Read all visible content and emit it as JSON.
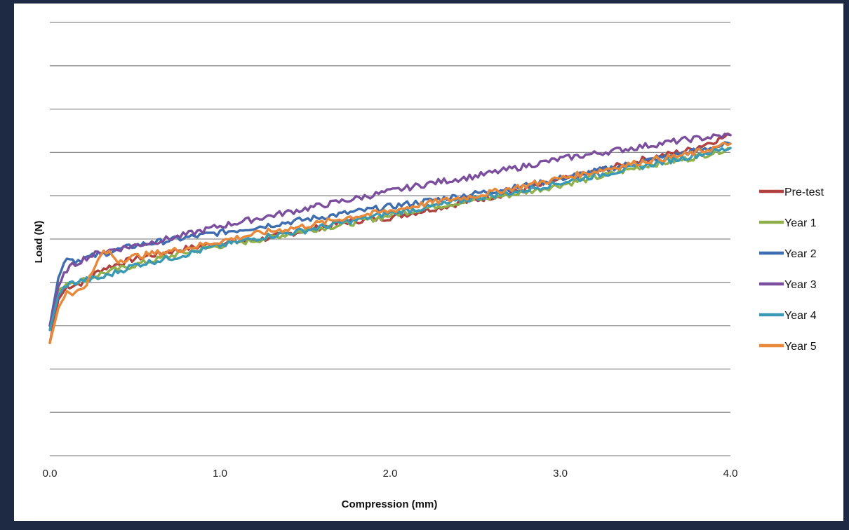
{
  "chart_data": {
    "type": "line",
    "title": "",
    "xlabel": "Compression (mm)",
    "ylabel": "Load (N)",
    "xlim": [
      0,
      4
    ],
    "ylim": [
      0,
      10
    ],
    "x_ticks": [
      "0.0",
      "1.0",
      "2.0",
      "3.0",
      "4.0"
    ],
    "y_tick_labels_shown": false,
    "grid": true,
    "legend_position": "right",
    "series": [
      {
        "name": "Pre-test",
        "color": "#b0413e",
        "x": [
          0,
          0.05,
          0.1,
          0.2,
          0.3,
          0.5,
          0.75,
          1,
          1.25,
          1.5,
          1.75,
          2,
          2.25,
          2.5,
          2.75,
          3,
          3.25,
          3.5,
          3.75,
          4
        ],
        "y": [
          2.6,
          3.6,
          3.9,
          4.0,
          4.3,
          4.55,
          4.75,
          4.9,
          5.0,
          5.2,
          5.4,
          5.5,
          5.7,
          5.9,
          6.1,
          6.35,
          6.6,
          6.85,
          7.05,
          7.4
        ]
      },
      {
        "name": "Year 1",
        "color": "#8fb04a",
        "x": [
          0,
          0.05,
          0.1,
          0.2,
          0.3,
          0.5,
          0.75,
          1,
          1.25,
          1.5,
          1.75,
          2,
          2.25,
          2.5,
          2.75,
          3,
          3.25,
          3.5,
          3.75,
          4
        ],
        "y": [
          3.0,
          3.8,
          4.0,
          4.05,
          4.2,
          4.4,
          4.65,
          4.85,
          5.0,
          5.2,
          5.35,
          5.55,
          5.75,
          5.9,
          6.05,
          6.25,
          6.45,
          6.7,
          6.85,
          7.1
        ]
      },
      {
        "name": "Year 2",
        "color": "#3e6db0",
        "x": [
          0,
          0.05,
          0.1,
          0.15,
          0.2,
          0.3,
          0.5,
          0.75,
          1,
          1.25,
          1.5,
          1.75,
          2,
          2.25,
          2.5,
          2.75,
          3,
          3.25,
          3.5,
          3.75,
          4
        ],
        "y": [
          3.0,
          4.1,
          4.6,
          4.5,
          4.55,
          4.65,
          4.85,
          5.0,
          5.15,
          5.3,
          5.45,
          5.6,
          5.75,
          5.9,
          6.05,
          6.2,
          6.4,
          6.6,
          6.8,
          7.0,
          7.2
        ]
      },
      {
        "name": "Year 3",
        "color": "#7b4f9e",
        "x": [
          0,
          0.05,
          0.1,
          0.2,
          0.3,
          0.5,
          0.75,
          1,
          1.25,
          1.5,
          1.75,
          2,
          2.25,
          2.5,
          2.75,
          3,
          3.25,
          3.5,
          3.75,
          4
        ],
        "y": [
          3.0,
          3.9,
          4.3,
          4.55,
          4.7,
          4.85,
          5.05,
          5.3,
          5.5,
          5.7,
          5.9,
          6.1,
          6.3,
          6.45,
          6.65,
          6.85,
          7.0,
          7.15,
          7.3,
          7.4
        ]
      },
      {
        "name": "Year 4",
        "color": "#3a9ab5",
        "x": [
          0,
          0.05,
          0.1,
          0.2,
          0.3,
          0.5,
          0.75,
          1,
          1.25,
          1.5,
          1.75,
          2,
          2.25,
          2.5,
          2.75,
          3,
          3.25,
          3.5,
          3.75,
          4
        ],
        "y": [
          2.9,
          3.7,
          3.95,
          4.05,
          4.1,
          4.4,
          4.6,
          4.85,
          5.05,
          5.2,
          5.4,
          5.6,
          5.75,
          5.95,
          6.1,
          6.3,
          6.5,
          6.7,
          6.9,
          7.1
        ]
      },
      {
        "name": "Year 5",
        "color": "#e8883a",
        "x": [
          0,
          0.05,
          0.1,
          0.15,
          0.2,
          0.25,
          0.3,
          0.35,
          0.4,
          0.5,
          0.75,
          1,
          1.25,
          1.5,
          1.75,
          2,
          2.25,
          2.5,
          2.75,
          3,
          3.25,
          3.5,
          3.75,
          4
        ],
        "y": [
          2.6,
          3.4,
          3.8,
          3.75,
          3.9,
          4.2,
          4.65,
          4.7,
          4.5,
          4.6,
          4.75,
          4.95,
          5.15,
          5.3,
          5.5,
          5.65,
          5.85,
          6.0,
          6.2,
          6.4,
          6.6,
          6.8,
          6.95,
          7.2
        ]
      }
    ]
  }
}
